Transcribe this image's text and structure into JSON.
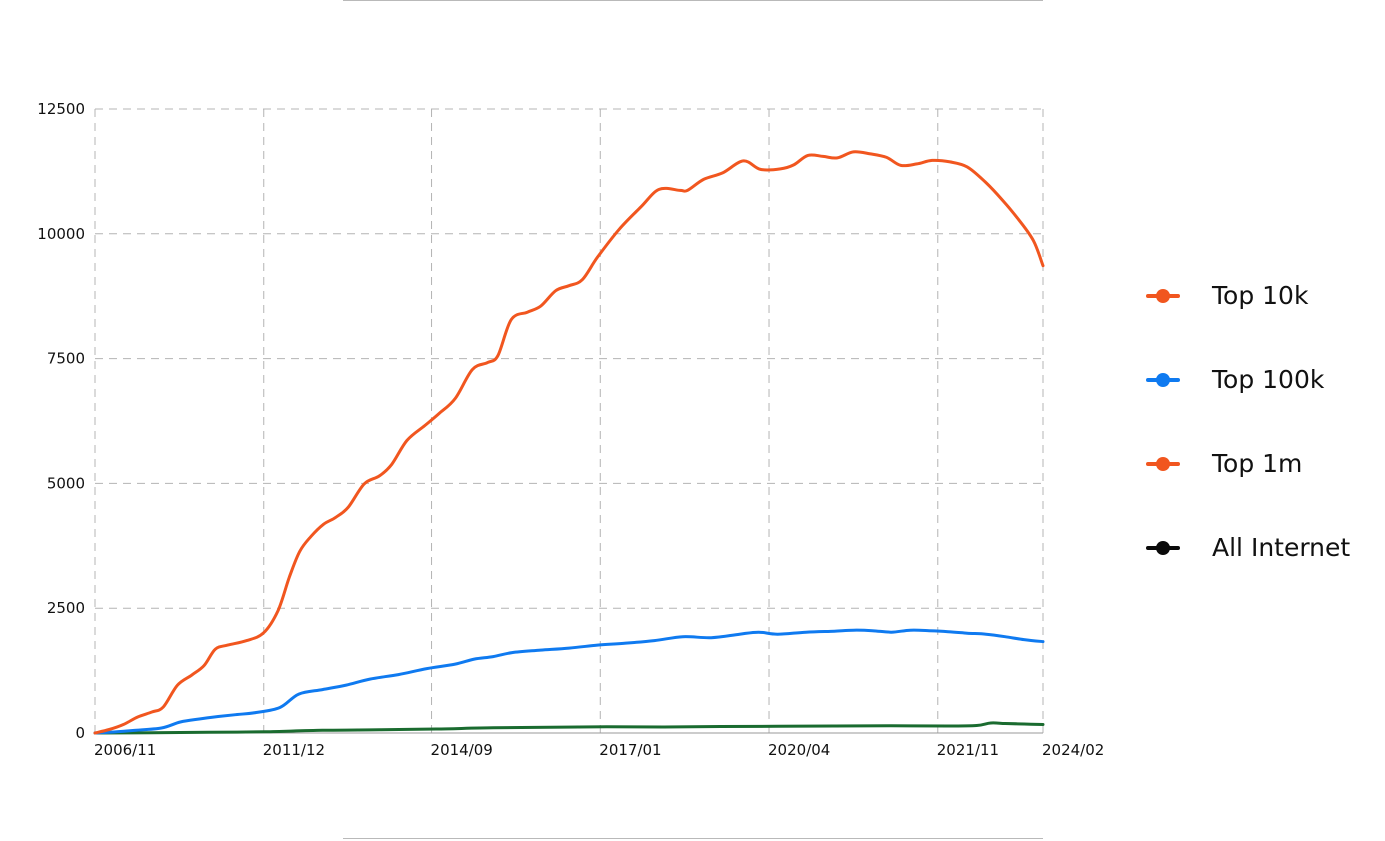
{
  "chart_data": {
    "type": "line",
    "x": [
      "2006/11",
      "2011/12",
      "2014/09",
      "2017/01",
      "2020/04",
      "2021/11",
      "2024/02"
    ],
    "xlim": [
      "2006/11",
      "2024/02"
    ],
    "ylim": [
      0,
      12500
    ],
    "yticks": [
      0,
      2500,
      5000,
      7500,
      10000,
      12500
    ],
    "grid": true,
    "legend_position": "right",
    "series": [
      {
        "name": "Top 10k",
        "color": "#f1561f",
        "points": [
          [
            0.0,
            0
          ],
          [
            0.015,
            70
          ],
          [
            0.03,
            170
          ],
          [
            0.045,
            320
          ],
          [
            0.06,
            420
          ],
          [
            0.072,
            520
          ],
          [
            0.087,
            960
          ],
          [
            0.102,
            1160
          ],
          [
            0.115,
            1350
          ],
          [
            0.127,
            1680
          ],
          [
            0.14,
            1760
          ],
          [
            0.16,
            1850
          ],
          [
            0.178,
            2010
          ],
          [
            0.193,
            2450
          ],
          [
            0.205,
            3120
          ],
          [
            0.216,
            3640
          ],
          [
            0.228,
            3940
          ],
          [
            0.241,
            4180
          ],
          [
            0.254,
            4320
          ],
          [
            0.267,
            4520
          ],
          [
            0.284,
            4990
          ],
          [
            0.3,
            5150
          ],
          [
            0.313,
            5380
          ],
          [
            0.329,
            5860
          ],
          [
            0.348,
            6160
          ],
          [
            0.363,
            6400
          ],
          [
            0.38,
            6700
          ],
          [
            0.398,
            7280
          ],
          [
            0.414,
            7420
          ],
          [
            0.425,
            7560
          ],
          [
            0.439,
            8280
          ],
          [
            0.456,
            8430
          ],
          [
            0.47,
            8550
          ],
          [
            0.486,
            8860
          ],
          [
            0.5,
            8960
          ],
          [
            0.514,
            9080
          ],
          [
            0.53,
            9530
          ],
          [
            0.553,
            10090
          ],
          [
            0.576,
            10540
          ],
          [
            0.595,
            10890
          ],
          [
            0.617,
            10870
          ],
          [
            0.625,
            10870
          ],
          [
            0.642,
            11090
          ],
          [
            0.662,
            11220
          ],
          [
            0.684,
            11460
          ],
          [
            0.702,
            11290
          ],
          [
            0.723,
            11300
          ],
          [
            0.737,
            11380
          ],
          [
            0.752,
            11570
          ],
          [
            0.768,
            11550
          ],
          [
            0.783,
            11520
          ],
          [
            0.8,
            11640
          ],
          [
            0.818,
            11600
          ],
          [
            0.835,
            11530
          ],
          [
            0.85,
            11370
          ],
          [
            0.867,
            11400
          ],
          [
            0.883,
            11470
          ],
          [
            0.902,
            11440
          ],
          [
            0.92,
            11340
          ],
          [
            0.939,
            11040
          ],
          [
            0.957,
            10680
          ],
          [
            0.974,
            10290
          ],
          [
            0.99,
            9860
          ],
          [
            1.0,
            9360
          ]
        ]
      },
      {
        "name": "Top 100k",
        "color": "#0f7af0",
        "points": [
          [
            0.0,
            0
          ],
          [
            0.02,
            20
          ],
          [
            0.04,
            50
          ],
          [
            0.07,
            100
          ],
          [
            0.09,
            220
          ],
          [
            0.11,
            280
          ],
          [
            0.13,
            330
          ],
          [
            0.15,
            370
          ],
          [
            0.17,
            410
          ],
          [
            0.195,
            510
          ],
          [
            0.215,
            780
          ],
          [
            0.24,
            870
          ],
          [
            0.265,
            960
          ],
          [
            0.29,
            1080
          ],
          [
            0.32,
            1170
          ],
          [
            0.35,
            1290
          ],
          [
            0.38,
            1380
          ],
          [
            0.4,
            1480
          ],
          [
            0.42,
            1530
          ],
          [
            0.44,
            1610
          ],
          [
            0.47,
            1660
          ],
          [
            0.5,
            1700
          ],
          [
            0.53,
            1760
          ],
          [
            0.56,
            1800
          ],
          [
            0.59,
            1850
          ],
          [
            0.62,
            1930
          ],
          [
            0.65,
            1910
          ],
          [
            0.68,
            1980
          ],
          [
            0.7,
            2020
          ],
          [
            0.72,
            1980
          ],
          [
            0.75,
            2020
          ],
          [
            0.78,
            2040
          ],
          [
            0.8,
            2060
          ],
          [
            0.82,
            2050
          ],
          [
            0.84,
            2020
          ],
          [
            0.86,
            2060
          ],
          [
            0.88,
            2050
          ],
          [
            0.9,
            2030
          ],
          [
            0.92,
            2000
          ],
          [
            0.94,
            1980
          ],
          [
            0.96,
            1930
          ],
          [
            0.98,
            1870
          ],
          [
            1.0,
            1830
          ]
        ]
      },
      {
        "name": "Top 1m",
        "color": "#f1561f",
        "points": []
      },
      {
        "name": "All Internet",
        "color": "#0a0a0a",
        "points": []
      },
      {
        "name": "",
        "color": "#1a6b2f",
        "legend": false,
        "points": [
          [
            0.0,
            0
          ],
          [
            0.06,
            5
          ],
          [
            0.12,
            15
          ],
          [
            0.18,
            25
          ],
          [
            0.24,
            55
          ],
          [
            0.3,
            65
          ],
          [
            0.36,
            80
          ],
          [
            0.42,
            105
          ],
          [
            0.48,
            115
          ],
          [
            0.54,
            125
          ],
          [
            0.6,
            120
          ],
          [
            0.66,
            130
          ],
          [
            0.72,
            135
          ],
          [
            0.78,
            140
          ],
          [
            0.84,
            145
          ],
          [
            0.9,
            140
          ],
          [
            0.93,
            150
          ],
          [
            0.945,
            200
          ],
          [
            0.96,
            190
          ],
          [
            0.98,
            180
          ],
          [
            1.0,
            170
          ]
        ]
      }
    ]
  }
}
